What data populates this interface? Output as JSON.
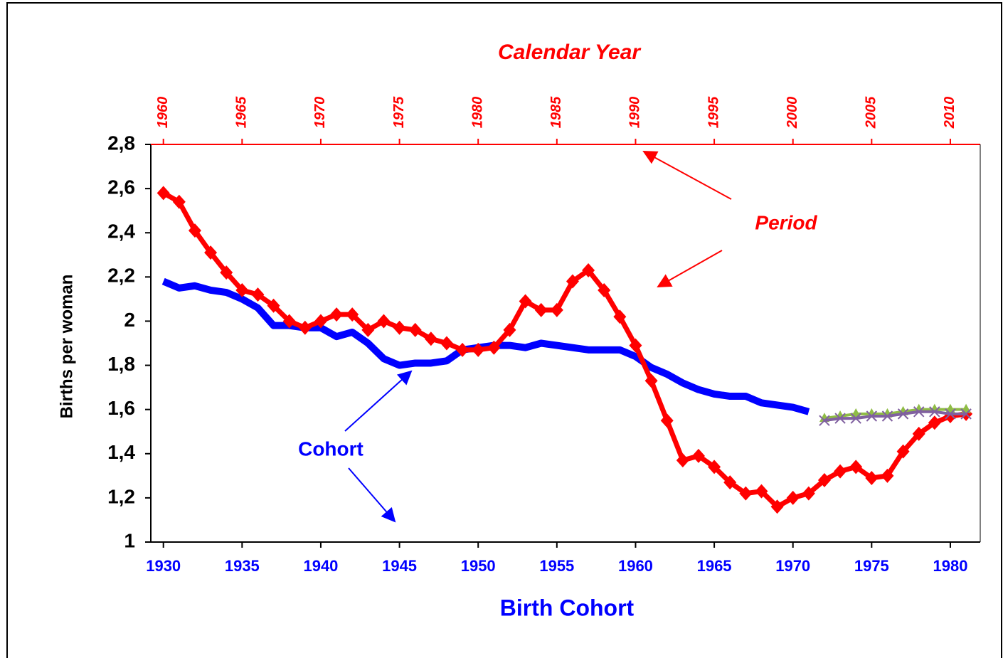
{
  "chart_data": {
    "type": "line",
    "x_top_label": "Calendar Year",
    "xlabel": "Birth Cohort",
    "ylabel": "Births per woman",
    "annotations": [
      "Period",
      "Cohort"
    ],
    "x": [
      1930,
      1931,
      1932,
      1933,
      1934,
      1935,
      1936,
      1937,
      1938,
      1939,
      1940,
      1941,
      1942,
      1943,
      1944,
      1945,
      1946,
      1947,
      1948,
      1949,
      1950,
      1951,
      1952,
      1953,
      1954,
      1955,
      1956,
      1957,
      1958,
      1959,
      1960,
      1961,
      1962,
      1963,
      1964,
      1965,
      1966,
      1967,
      1968,
      1969,
      1970,
      1971,
      1972,
      1973,
      1974,
      1975,
      1976,
      1977,
      1978,
      1979,
      1980,
      1981
    ],
    "xlim": [
      1929.2,
      1981.9
    ],
    "xticks": [
      1930,
      1935,
      1940,
      1945,
      1950,
      1955,
      1960,
      1965,
      1970,
      1975,
      1980
    ],
    "x2lim": [
      1959.2,
      2011.9
    ],
    "x2ticks": [
      1960,
      1965,
      1970,
      1975,
      1980,
      1985,
      1990,
      1995,
      2000,
      2005,
      2010
    ],
    "ylim": [
      1,
      2.8
    ],
    "yticks": [
      1,
      {
        "value": 1.2,
        "label": "1,2"
      },
      {
        "value": 1.4,
        "label": "1,4"
      },
      {
        "value": 1.6,
        "label": "1,6"
      },
      {
        "value": 1.8,
        "label": "1,8"
      },
      2,
      {
        "value": 2.2,
        "label": "2,2"
      },
      {
        "value": 2.4,
        "label": "2,4"
      },
      {
        "value": 2.6,
        "label": "2,6"
      },
      {
        "value": 2.8,
        "label": "2,8"
      }
    ],
    "series": [
      {
        "color": "#0000ff",
        "marker": "none",
        "width": 10,
        "values": [
          2.18,
          2.15,
          2.16,
          2.14,
          2.13,
          2.1,
          2.06,
          1.98,
          1.98,
          1.97,
          1.97,
          1.93,
          1.95,
          1.9,
          1.83,
          1.8,
          1.81,
          1.81,
          1.82,
          1.87,
          1.88,
          1.89,
          1.89,
          1.88,
          1.9,
          1.89,
          1.88,
          1.87,
          1.87,
          1.87,
          1.84,
          1.79,
          1.76,
          1.72,
          1.69,
          1.67,
          1.66,
          1.66,
          1.63,
          1.62,
          1.61,
          1.59,
          null,
          null,
          null,
          null,
          null,
          null,
          null,
          null,
          null,
          null
        ]
      },
      {
        "color": "#ff0000",
        "marker": "diamond",
        "width": 7,
        "values": [
          2.58,
          2.54,
          2.41,
          2.31,
          2.22,
          2.14,
          2.12,
          2.07,
          2.0,
          1.97,
          2.0,
          2.03,
          2.03,
          1.96,
          2.0,
          1.97,
          1.96,
          1.92,
          1.9,
          1.87,
          1.87,
          1.88,
          1.96,
          2.09,
          2.05,
          2.05,
          2.18,
          2.23,
          2.14,
          2.02,
          1.89,
          1.73,
          1.55,
          1.37,
          1.39,
          1.34,
          1.27,
          1.22,
          1.23,
          1.16,
          1.2,
          1.22,
          1.28,
          1.32,
          1.34,
          1.29,
          1.3,
          1.41,
          1.49,
          1.54,
          1.57,
          1.58
        ]
      },
      {
        "color": "#8fbc45",
        "marker": "triangle",
        "width": 4,
        "values": [
          null,
          null,
          null,
          null,
          null,
          null,
          null,
          null,
          null,
          null,
          null,
          null,
          null,
          null,
          null,
          null,
          null,
          null,
          null,
          null,
          null,
          null,
          null,
          null,
          null,
          null,
          null,
          null,
          null,
          null,
          null,
          null,
          null,
          null,
          null,
          null,
          null,
          null,
          null,
          null,
          null,
          null,
          1.56,
          1.57,
          1.58,
          1.58,
          1.58,
          1.59,
          1.6,
          1.6,
          1.6,
          1.6
        ]
      },
      {
        "color": "#8060a0",
        "marker": "x",
        "width": 4,
        "values": [
          null,
          null,
          null,
          null,
          null,
          null,
          null,
          null,
          null,
          null,
          null,
          null,
          null,
          null,
          null,
          null,
          null,
          null,
          null,
          null,
          null,
          null,
          null,
          null,
          null,
          null,
          null,
          null,
          null,
          null,
          null,
          null,
          null,
          null,
          null,
          null,
          null,
          null,
          null,
          null,
          null,
          null,
          1.55,
          1.56,
          1.56,
          1.57,
          1.57,
          1.58,
          1.59,
          1.59,
          1.58,
          1.58
        ]
      }
    ]
  }
}
